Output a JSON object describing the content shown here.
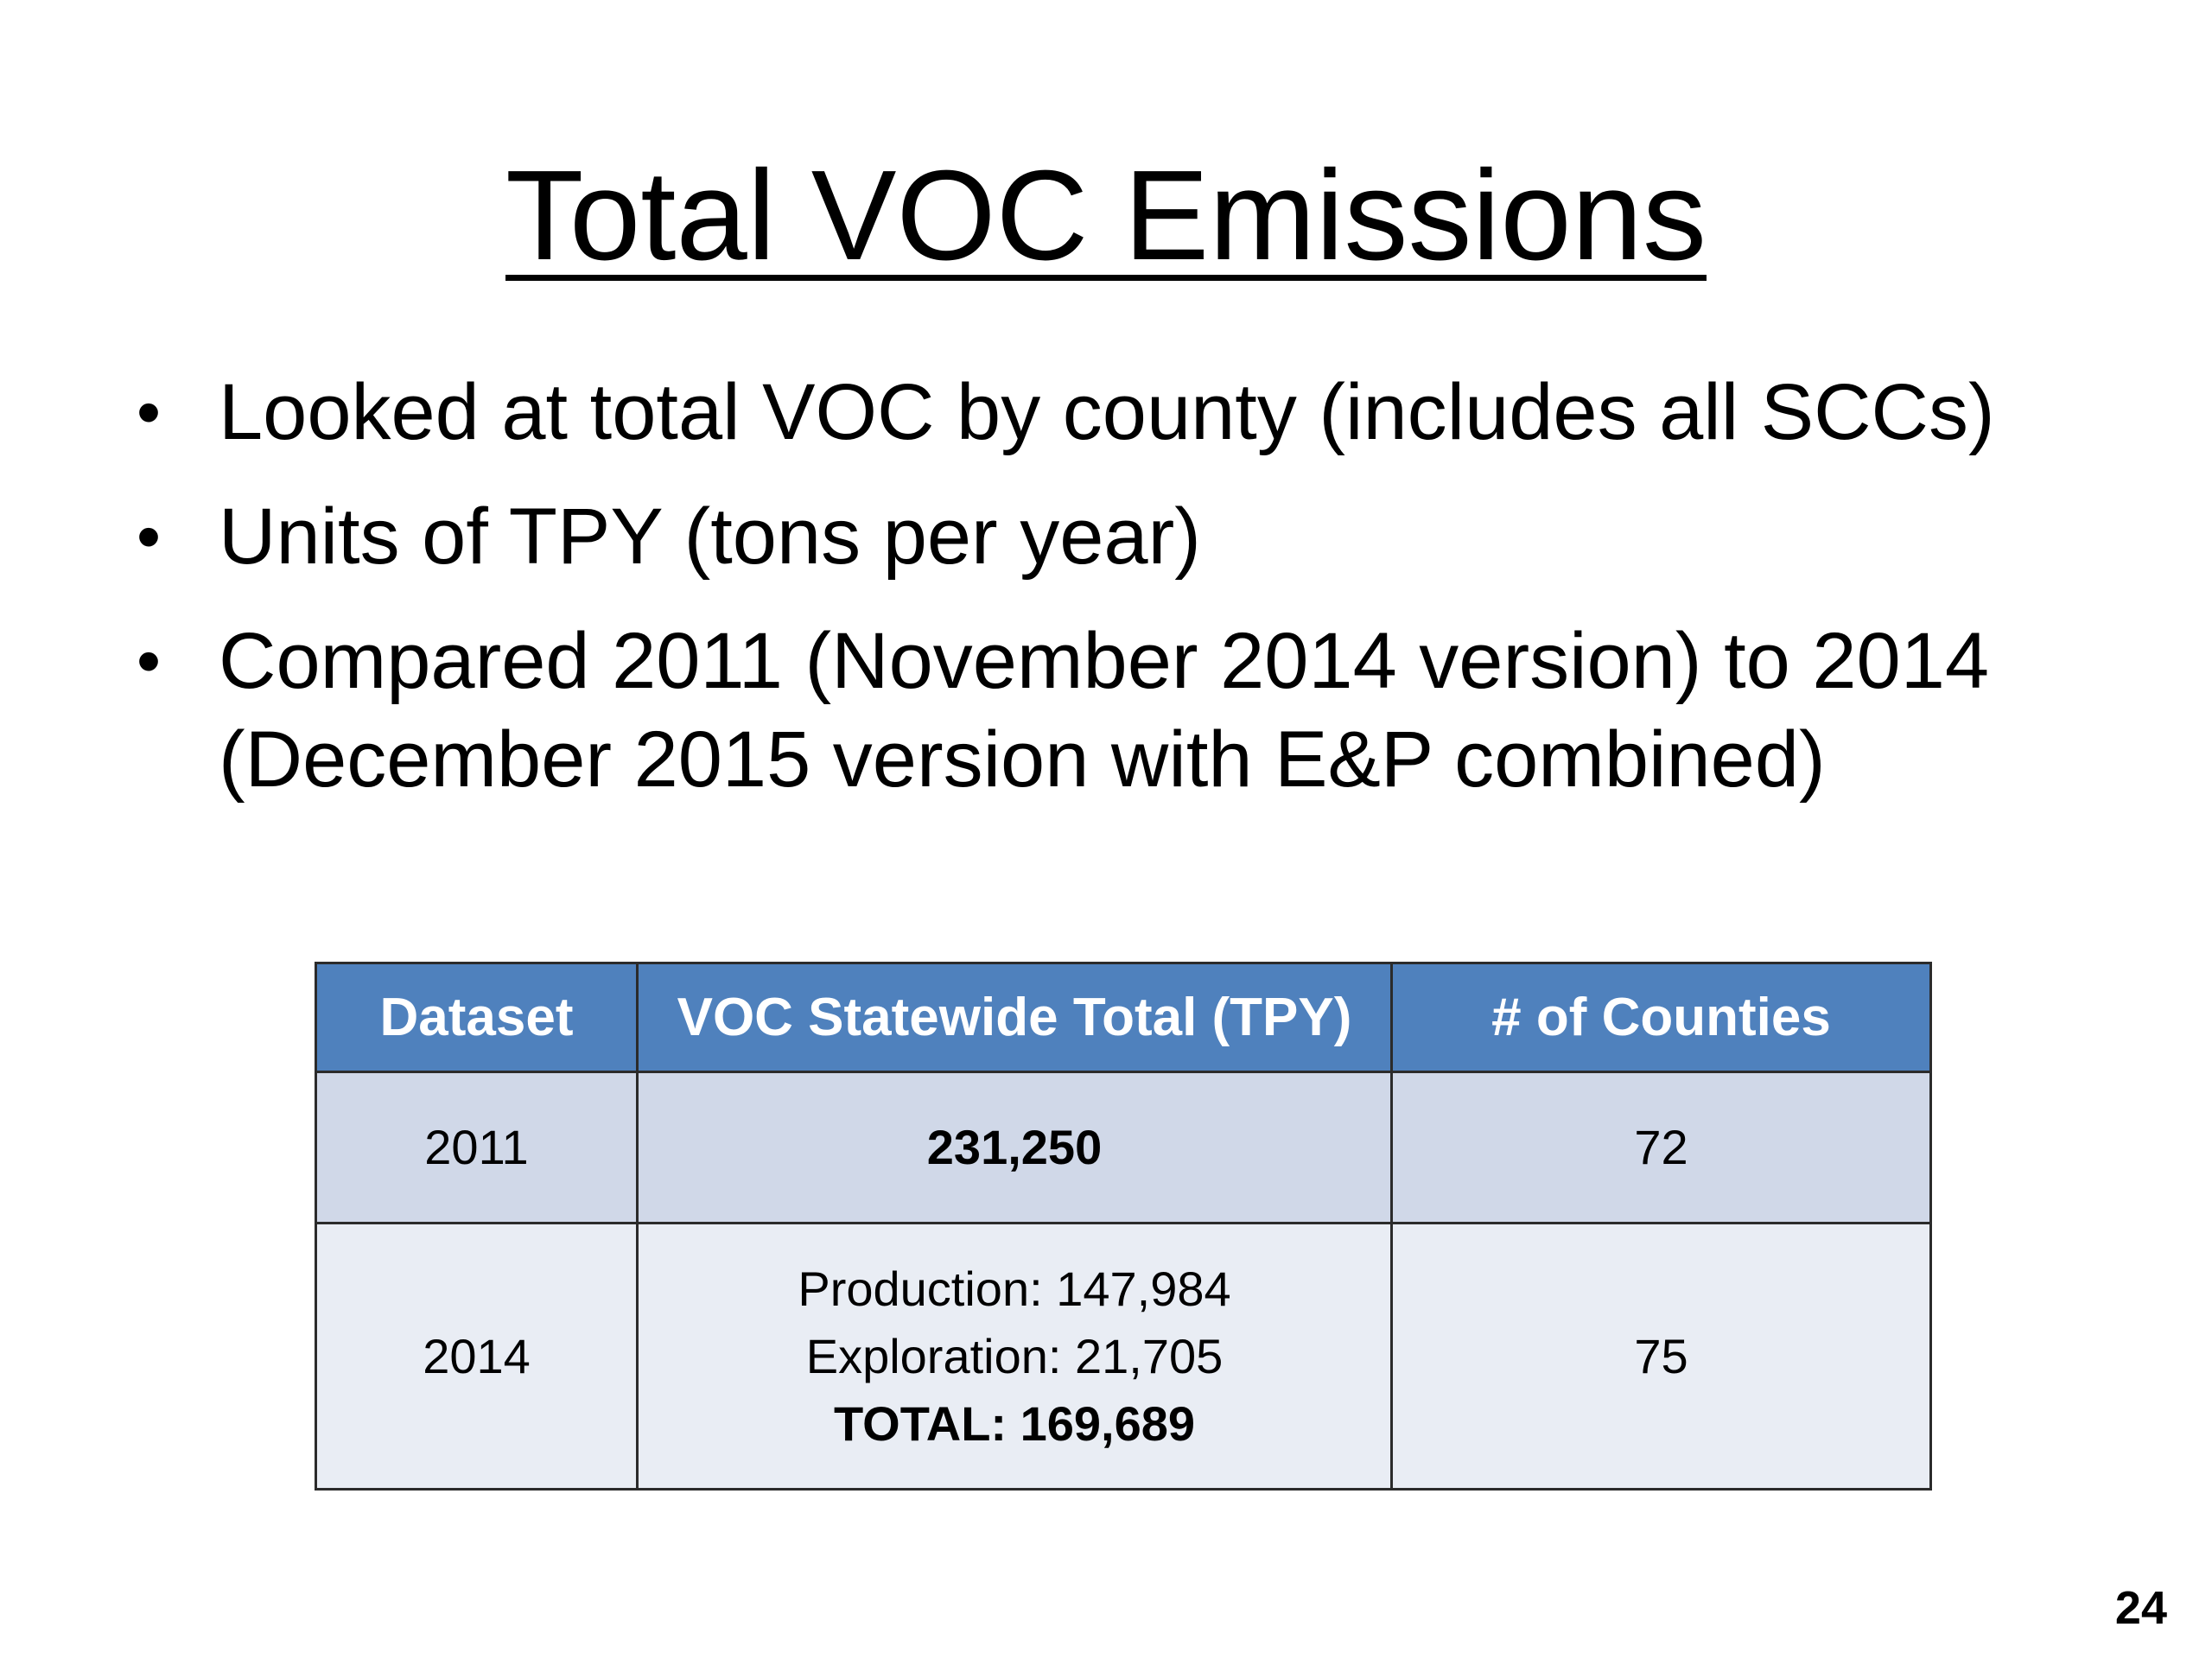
{
  "title": "Total VOC Emissions",
  "bullets": [
    "Looked at total VOC by county (includes all SCCs)",
    "Units of TPY (tons per year)",
    "Compared 2011 (November 2014 version) to 2014 (December 2015 version with E&P combined)"
  ],
  "table": {
    "headers": [
      "Dataset",
      "VOC Statewide Total (TPY)",
      "# of Counties"
    ],
    "rows": [
      {
        "dataset": "2011",
        "total": "231,250",
        "counties": "72"
      },
      {
        "dataset": "2014",
        "total_lines": [
          "Production: 147,984",
          "Exploration: 21,705",
          "TOTAL: 169,689"
        ],
        "counties": "75"
      }
    ]
  },
  "page_number": "24",
  "colors": {
    "header_bg": "#4f81bd",
    "row_odd_bg": "#d0d8e8",
    "row_even_bg": "#e9edf4"
  }
}
